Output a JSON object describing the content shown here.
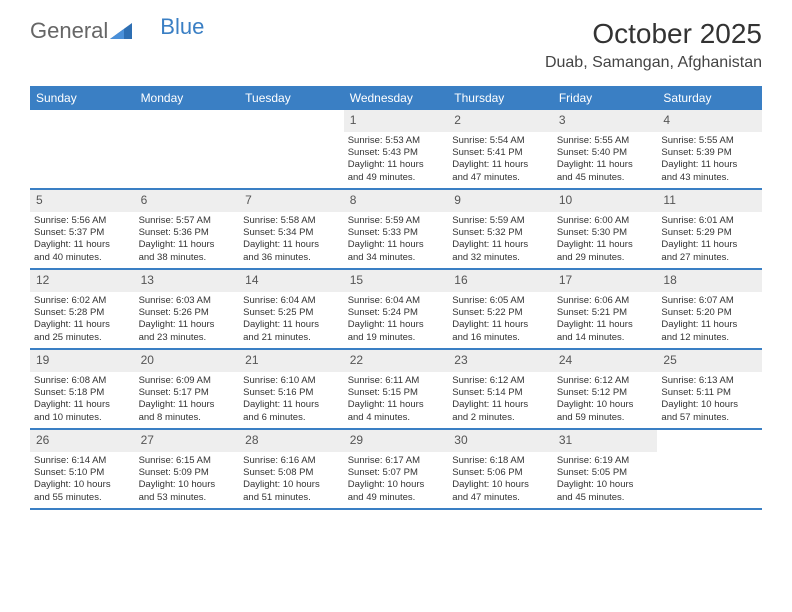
{
  "brand": {
    "part1": "General",
    "part2": "Blue"
  },
  "title": "October 2025",
  "location": "Duab, Samangan, Afghanistan",
  "colors": {
    "header_bg": "#3a7fc4",
    "header_text": "#ffffff",
    "daynum_bg": "#eeeeee",
    "text": "#333333",
    "rule": "#3a7fc4"
  },
  "dayNames": [
    "Sunday",
    "Monday",
    "Tuesday",
    "Wednesday",
    "Thursday",
    "Friday",
    "Saturday"
  ],
  "weeks": [
    [
      {
        "empty": true
      },
      {
        "empty": true
      },
      {
        "empty": true
      },
      {
        "day": "1",
        "sunrise": "Sunrise: 5:53 AM",
        "sunset": "Sunset: 5:43 PM",
        "daylight1": "Daylight: 11 hours",
        "daylight2": "and 49 minutes."
      },
      {
        "day": "2",
        "sunrise": "Sunrise: 5:54 AM",
        "sunset": "Sunset: 5:41 PM",
        "daylight1": "Daylight: 11 hours",
        "daylight2": "and 47 minutes."
      },
      {
        "day": "3",
        "sunrise": "Sunrise: 5:55 AM",
        "sunset": "Sunset: 5:40 PM",
        "daylight1": "Daylight: 11 hours",
        "daylight2": "and 45 minutes."
      },
      {
        "day": "4",
        "sunrise": "Sunrise: 5:55 AM",
        "sunset": "Sunset: 5:39 PM",
        "daylight1": "Daylight: 11 hours",
        "daylight2": "and 43 minutes."
      }
    ],
    [
      {
        "day": "5",
        "sunrise": "Sunrise: 5:56 AM",
        "sunset": "Sunset: 5:37 PM",
        "daylight1": "Daylight: 11 hours",
        "daylight2": "and 40 minutes."
      },
      {
        "day": "6",
        "sunrise": "Sunrise: 5:57 AM",
        "sunset": "Sunset: 5:36 PM",
        "daylight1": "Daylight: 11 hours",
        "daylight2": "and 38 minutes."
      },
      {
        "day": "7",
        "sunrise": "Sunrise: 5:58 AM",
        "sunset": "Sunset: 5:34 PM",
        "daylight1": "Daylight: 11 hours",
        "daylight2": "and 36 minutes."
      },
      {
        "day": "8",
        "sunrise": "Sunrise: 5:59 AM",
        "sunset": "Sunset: 5:33 PM",
        "daylight1": "Daylight: 11 hours",
        "daylight2": "and 34 minutes."
      },
      {
        "day": "9",
        "sunrise": "Sunrise: 5:59 AM",
        "sunset": "Sunset: 5:32 PM",
        "daylight1": "Daylight: 11 hours",
        "daylight2": "and 32 minutes."
      },
      {
        "day": "10",
        "sunrise": "Sunrise: 6:00 AM",
        "sunset": "Sunset: 5:30 PM",
        "daylight1": "Daylight: 11 hours",
        "daylight2": "and 29 minutes."
      },
      {
        "day": "11",
        "sunrise": "Sunrise: 6:01 AM",
        "sunset": "Sunset: 5:29 PM",
        "daylight1": "Daylight: 11 hours",
        "daylight2": "and 27 minutes."
      }
    ],
    [
      {
        "day": "12",
        "sunrise": "Sunrise: 6:02 AM",
        "sunset": "Sunset: 5:28 PM",
        "daylight1": "Daylight: 11 hours",
        "daylight2": "and 25 minutes."
      },
      {
        "day": "13",
        "sunrise": "Sunrise: 6:03 AM",
        "sunset": "Sunset: 5:26 PM",
        "daylight1": "Daylight: 11 hours",
        "daylight2": "and 23 minutes."
      },
      {
        "day": "14",
        "sunrise": "Sunrise: 6:04 AM",
        "sunset": "Sunset: 5:25 PM",
        "daylight1": "Daylight: 11 hours",
        "daylight2": "and 21 minutes."
      },
      {
        "day": "15",
        "sunrise": "Sunrise: 6:04 AM",
        "sunset": "Sunset: 5:24 PM",
        "daylight1": "Daylight: 11 hours",
        "daylight2": "and 19 minutes."
      },
      {
        "day": "16",
        "sunrise": "Sunrise: 6:05 AM",
        "sunset": "Sunset: 5:22 PM",
        "daylight1": "Daylight: 11 hours",
        "daylight2": "and 16 minutes."
      },
      {
        "day": "17",
        "sunrise": "Sunrise: 6:06 AM",
        "sunset": "Sunset: 5:21 PM",
        "daylight1": "Daylight: 11 hours",
        "daylight2": "and 14 minutes."
      },
      {
        "day": "18",
        "sunrise": "Sunrise: 6:07 AM",
        "sunset": "Sunset: 5:20 PM",
        "daylight1": "Daylight: 11 hours",
        "daylight2": "and 12 minutes."
      }
    ],
    [
      {
        "day": "19",
        "sunrise": "Sunrise: 6:08 AM",
        "sunset": "Sunset: 5:18 PM",
        "daylight1": "Daylight: 11 hours",
        "daylight2": "and 10 minutes."
      },
      {
        "day": "20",
        "sunrise": "Sunrise: 6:09 AM",
        "sunset": "Sunset: 5:17 PM",
        "daylight1": "Daylight: 11 hours",
        "daylight2": "and 8 minutes."
      },
      {
        "day": "21",
        "sunrise": "Sunrise: 6:10 AM",
        "sunset": "Sunset: 5:16 PM",
        "daylight1": "Daylight: 11 hours",
        "daylight2": "and 6 minutes."
      },
      {
        "day": "22",
        "sunrise": "Sunrise: 6:11 AM",
        "sunset": "Sunset: 5:15 PM",
        "daylight1": "Daylight: 11 hours",
        "daylight2": "and 4 minutes."
      },
      {
        "day": "23",
        "sunrise": "Sunrise: 6:12 AM",
        "sunset": "Sunset: 5:14 PM",
        "daylight1": "Daylight: 11 hours",
        "daylight2": "and 2 minutes."
      },
      {
        "day": "24",
        "sunrise": "Sunrise: 6:12 AM",
        "sunset": "Sunset: 5:12 PM",
        "daylight1": "Daylight: 10 hours",
        "daylight2": "and 59 minutes."
      },
      {
        "day": "25",
        "sunrise": "Sunrise: 6:13 AM",
        "sunset": "Sunset: 5:11 PM",
        "daylight1": "Daylight: 10 hours",
        "daylight2": "and 57 minutes."
      }
    ],
    [
      {
        "day": "26",
        "sunrise": "Sunrise: 6:14 AM",
        "sunset": "Sunset: 5:10 PM",
        "daylight1": "Daylight: 10 hours",
        "daylight2": "and 55 minutes."
      },
      {
        "day": "27",
        "sunrise": "Sunrise: 6:15 AM",
        "sunset": "Sunset: 5:09 PM",
        "daylight1": "Daylight: 10 hours",
        "daylight2": "and 53 minutes."
      },
      {
        "day": "28",
        "sunrise": "Sunrise: 6:16 AM",
        "sunset": "Sunset: 5:08 PM",
        "daylight1": "Daylight: 10 hours",
        "daylight2": "and 51 minutes."
      },
      {
        "day": "29",
        "sunrise": "Sunrise: 6:17 AM",
        "sunset": "Sunset: 5:07 PM",
        "daylight1": "Daylight: 10 hours",
        "daylight2": "and 49 minutes."
      },
      {
        "day": "30",
        "sunrise": "Sunrise: 6:18 AM",
        "sunset": "Sunset: 5:06 PM",
        "daylight1": "Daylight: 10 hours",
        "daylight2": "and 47 minutes."
      },
      {
        "day": "31",
        "sunrise": "Sunrise: 6:19 AM",
        "sunset": "Sunset: 5:05 PM",
        "daylight1": "Daylight: 10 hours",
        "daylight2": "and 45 minutes."
      },
      {
        "empty": true
      }
    ]
  ]
}
